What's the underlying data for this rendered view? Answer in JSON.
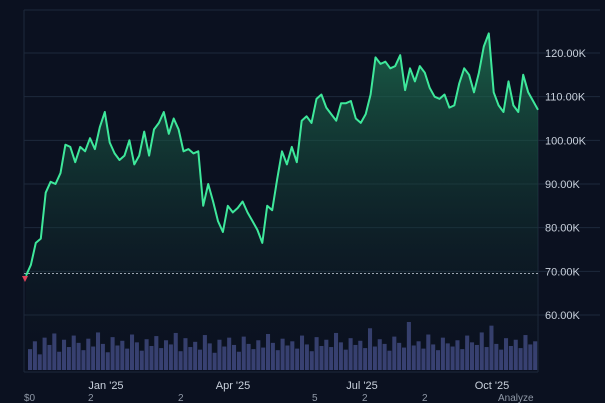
{
  "chart_data": {
    "type": "area",
    "x_ticks": [
      "Jan '25",
      "Apr '25",
      "Jul '25",
      "Oct '25"
    ],
    "y_ticks": [
      "60.00K",
      "70.00K",
      "80.00K",
      "90.00K",
      "100.00K",
      "110.00K",
      "120.00K"
    ],
    "y_tick_values": [
      60000,
      70000,
      80000,
      90000,
      100000,
      110000,
      120000
    ],
    "ylim": [
      55000,
      130000
    ],
    "baseline": 69500,
    "grid": true,
    "misc_labels": [
      "$0",
      "2",
      "2",
      "5",
      "2",
      "2",
      "Analyze"
    ],
    "colors": {
      "background": "#0b1120",
      "line": "#3ee89b",
      "fill": "#1f7a55",
      "grid": "#1e293b",
      "volume": "#3b4477",
      "marker": "#e0435a",
      "baseline": "#9aa3b0"
    },
    "series": [
      {
        "values": [
          69000,
          71500,
          76500,
          77500,
          88000,
          90500,
          90000,
          92500,
          99000,
          98500,
          95000,
          98500,
          97500,
          100500,
          98000,
          103000,
          106500,
          99500,
          97000,
          95500,
          96500,
          100000,
          94500,
          96500,
          102000,
          96500,
          102500,
          104000,
          106500,
          101500,
          105000,
          102500,
          97500,
          98000,
          97000,
          97500,
          85000,
          90000,
          86000,
          81500,
          79000,
          85000,
          83500,
          84500,
          86000,
          83500,
          81500,
          79500,
          76500,
          85000,
          84000,
          91000,
          97500,
          94500,
          98500,
          95000,
          104500,
          105500,
          104000,
          109500,
          110500,
          107500,
          106000,
          104500,
          108500,
          108500,
          109000,
          105000,
          104000,
          106000,
          110500,
          119000,
          117500,
          118000,
          116500,
          117000,
          119500,
          111500,
          116500,
          113500,
          117000,
          115500,
          112000,
          110000,
          109500,
          110500,
          107500,
          108000,
          113000,
          116500,
          115000,
          111000,
          115500,
          121500,
          124500,
          111000,
          108000,
          106500,
          113500,
          108000,
          106500,
          115000,
          111000,
          109000,
          107000
        ]
      }
    ],
    "volume": [
      40,
      55,
      30,
      62,
      48,
      70,
      35,
      58,
      44,
      66,
      52,
      38,
      60,
      45,
      72,
      50,
      34,
      63,
      47,
      56,
      41,
      68,
      53,
      37,
      59,
      46,
      65,
      42,
      57,
      49,
      71,
      36,
      61,
      44,
      54,
      39,
      67,
      51,
      33,
      58,
      45,
      62,
      48,
      35,
      64,
      50,
      40,
      57,
      43,
      69,
      52,
      38,
      60,
      47,
      55,
      41,
      66,
      49,
      36,
      63,
      46,
      58,
      44,
      71,
      53,
      39,
      61,
      48,
      56,
      42,
      80,
      45,
      59,
      50,
      37,
      64,
      52,
      43,
      92,
      47,
      55,
      41,
      68,
      49,
      38,
      62,
      51,
      45,
      57,
      40,
      66,
      53,
      48,
      72,
      44,
      85,
      50,
      39,
      61,
      46,
      58,
      42,
      67,
      49,
      55
    ]
  }
}
